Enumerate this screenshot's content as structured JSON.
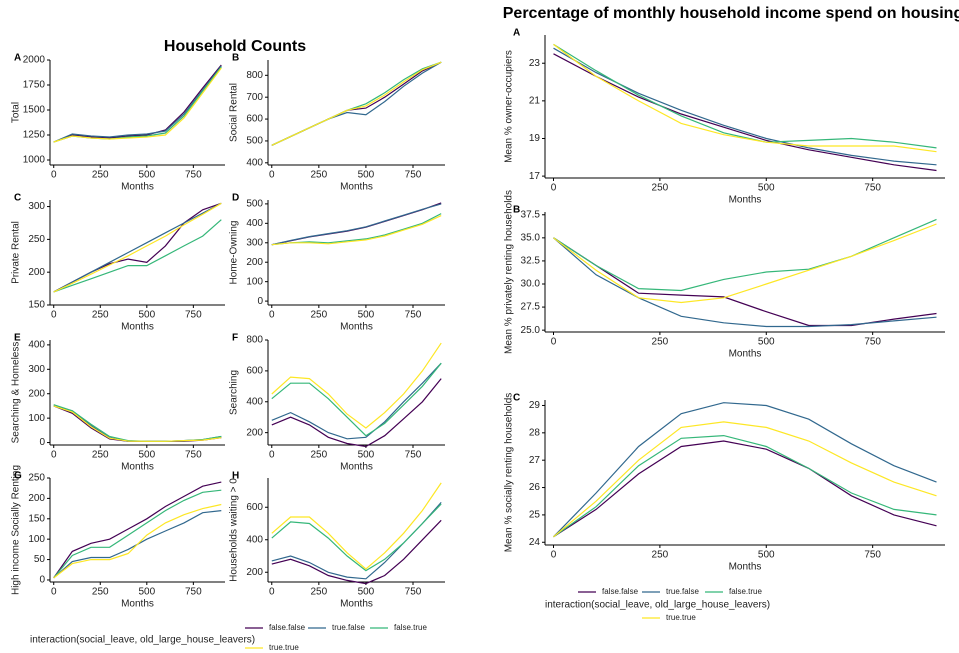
{
  "left_title": "Household Counts",
  "right_title": "Percentage of monthly household income spend on housing",
  "legend_title": "interaction(social_leave, old_large_house_leavers)",
  "chart_data": [
    {
      "type": "line",
      "panel": "A",
      "ylabel": "Total",
      "xlabel": "Months",
      "x": [
        0,
        100,
        200,
        300,
        400,
        500,
        600,
        700,
        800,
        900
      ],
      "xlim": [
        -20,
        920
      ],
      "xticks": [
        0,
        250,
        500,
        750
      ],
      "ylim": [
        950,
        2000
      ],
      "yticks": [
        1000,
        1250,
        1500,
        1750,
        2000
      ],
      "series": [
        {
          "name": "false.false",
          "color": "#440154",
          "values": [
            1180,
            1250,
            1230,
            1220,
            1240,
            1250,
            1300,
            1480,
            1720,
            1950
          ]
        },
        {
          "name": "true.false",
          "color": "#31688e",
          "values": [
            1180,
            1260,
            1240,
            1230,
            1250,
            1260,
            1290,
            1460,
            1700,
            1940
          ]
        },
        {
          "name": "false.true",
          "color": "#35b779",
          "values": [
            1180,
            1240,
            1220,
            1210,
            1230,
            1240,
            1270,
            1440,
            1690,
            1930
          ]
        },
        {
          "name": "true.true",
          "color": "#fde725",
          "values": [
            1180,
            1240,
            1220,
            1210,
            1220,
            1230,
            1250,
            1420,
            1670,
            1920
          ]
        }
      ]
    },
    {
      "type": "line",
      "panel": "B",
      "ylabel": "Social Rental",
      "xlabel": "Months",
      "x": [
        0,
        100,
        200,
        300,
        400,
        500,
        600,
        700,
        800,
        900
      ],
      "xlim": [
        -20,
        920
      ],
      "xticks": [
        0,
        250,
        500,
        750
      ],
      "ylim": [
        390,
        870
      ],
      "yticks": [
        400,
        500,
        600,
        700,
        800
      ],
      "series": [
        {
          "name": "false.false",
          "color": "#440154",
          "values": [
            480,
            520,
            560,
            600,
            640,
            650,
            700,
            760,
            820,
            860
          ]
        },
        {
          "name": "true.false",
          "color": "#31688e",
          "values": [
            480,
            520,
            560,
            600,
            630,
            620,
            680,
            750,
            810,
            860
          ]
        },
        {
          "name": "false.true",
          "color": "#35b779",
          "values": [
            480,
            520,
            560,
            600,
            640,
            670,
            720,
            780,
            830,
            860
          ]
        },
        {
          "name": "true.true",
          "color": "#fde725",
          "values": [
            480,
            520,
            560,
            600,
            640,
            660,
            710,
            770,
            825,
            860
          ]
        }
      ]
    },
    {
      "type": "line",
      "panel": "C",
      "ylabel": "Private Rental",
      "xlabel": "Months",
      "x": [
        0,
        100,
        200,
        300,
        400,
        500,
        600,
        700,
        800,
        900
      ],
      "xlim": [
        -20,
        920
      ],
      "xticks": [
        0,
        250,
        500,
        750
      ],
      "ylim": [
        150,
        310
      ],
      "yticks": [
        150,
        200,
        250,
        300
      ],
      "series": [
        {
          "name": "false.false",
          "color": "#440154",
          "values": [
            170,
            185,
            200,
            213,
            220,
            215,
            240,
            275,
            295,
            305
          ]
        },
        {
          "name": "true.false",
          "color": "#31688e",
          "values": [
            170,
            185,
            200,
            215,
            230,
            245,
            260,
            275,
            290,
            305
          ]
        },
        {
          "name": "false.true",
          "color": "#35b779",
          "values": [
            170,
            180,
            190,
            200,
            210,
            210,
            225,
            240,
            255,
            280
          ]
        },
        {
          "name": "true.true",
          "color": "#fde725",
          "values": [
            170,
            183,
            197,
            211,
            225,
            240,
            255,
            272,
            288,
            305
          ]
        }
      ]
    },
    {
      "type": "line",
      "panel": "D",
      "ylabel": "Home-Owning",
      "xlabel": "Months",
      "x": [
        0,
        100,
        200,
        300,
        400,
        500,
        600,
        700,
        800,
        900
      ],
      "xlim": [
        -20,
        920
      ],
      "xticks": [
        0,
        250,
        500,
        750
      ],
      "ylim": [
        -20,
        520
      ],
      "yticks": [
        0,
        100,
        200,
        300,
        400,
        500
      ],
      "series": [
        {
          "name": "false.false",
          "color": "#440154",
          "values": [
            290,
            310,
            330,
            345,
            360,
            380,
            410,
            440,
            470,
            505
          ]
        },
        {
          "name": "true.false",
          "color": "#31688e",
          "values": [
            290,
            312,
            332,
            347,
            362,
            382,
            412,
            442,
            472,
            500
          ]
        },
        {
          "name": "false.true",
          "color": "#35b779",
          "values": [
            290,
            300,
            305,
            300,
            310,
            320,
            340,
            370,
            400,
            450
          ]
        },
        {
          "name": "true.true",
          "color": "#fde725",
          "values": [
            290,
            300,
            300,
            295,
            305,
            315,
            335,
            365,
            395,
            440
          ]
        }
      ]
    },
    {
      "type": "line",
      "panel": "E",
      "ylabel": "Searching & Homeless",
      "xlabel": "Months",
      "x": [
        0,
        100,
        200,
        300,
        400,
        500,
        600,
        700,
        800,
        900
      ],
      "xlim": [
        -20,
        920
      ],
      "xticks": [
        0,
        250,
        500,
        750
      ],
      "ylim": [
        -10,
        420
      ],
      "yticks": [
        0,
        100,
        200,
        300,
        400
      ],
      "series": [
        {
          "name": "false.false",
          "color": "#440154",
          "values": [
            150,
            120,
            60,
            15,
            5,
            5,
            5,
            5,
            10,
            20
          ]
        },
        {
          "name": "true.false",
          "color": "#31688e",
          "values": [
            150,
            130,
            70,
            20,
            5,
            5,
            5,
            8,
            12,
            25
          ]
        },
        {
          "name": "false.true",
          "color": "#35b779",
          "values": [
            155,
            130,
            75,
            25,
            8,
            5,
            5,
            8,
            12,
            25
          ]
        },
        {
          "name": "true.true",
          "color": "#fde725",
          "values": [
            150,
            125,
            65,
            18,
            6,
            5,
            5,
            8,
            10,
            20
          ]
        }
      ]
    },
    {
      "type": "line",
      "panel": "F",
      "ylabel": "Searching",
      "xlabel": "Months",
      "x": [
        0,
        100,
        200,
        300,
        400,
        500,
        600,
        700,
        800,
        900
      ],
      "xlim": [
        -20,
        920
      ],
      "xticks": [
        0,
        250,
        500,
        750
      ],
      "ylim": [
        120,
        800
      ],
      "yticks": [
        200,
        400,
        600,
        800
      ],
      "series": [
        {
          "name": "false.false",
          "color": "#440154",
          "values": [
            250,
            300,
            250,
            170,
            130,
            110,
            180,
            290,
            400,
            550
          ]
        },
        {
          "name": "true.false",
          "color": "#31688e",
          "values": [
            280,
            330,
            270,
            200,
            160,
            170,
            270,
            400,
            520,
            650
          ]
        },
        {
          "name": "false.true",
          "color": "#35b779",
          "values": [
            420,
            520,
            520,
            420,
            300,
            180,
            260,
            380,
            500,
            650
          ]
        },
        {
          "name": "true.true",
          "color": "#fde725",
          "values": [
            450,
            560,
            550,
            450,
            320,
            230,
            330,
            450,
            600,
            780
          ]
        }
      ]
    },
    {
      "type": "line",
      "panel": "G",
      "ylabel": "High income Socially Renting",
      "xlabel": "Months",
      "x": [
        0,
        100,
        200,
        300,
        400,
        500,
        600,
        700,
        800,
        900
      ],
      "xlim": [
        -20,
        920
      ],
      "xticks": [
        0,
        250,
        500,
        750
      ],
      "ylim": [
        -5,
        250
      ],
      "yticks": [
        0,
        50,
        100,
        150,
        200,
        250
      ],
      "series": [
        {
          "name": "false.false",
          "color": "#440154",
          "values": [
            5,
            70,
            90,
            100,
            125,
            150,
            180,
            205,
            230,
            240
          ]
        },
        {
          "name": "true.false",
          "color": "#31688e",
          "values": [
            5,
            45,
            55,
            55,
            75,
            100,
            120,
            140,
            165,
            170
          ]
        },
        {
          "name": "false.true",
          "color": "#35b779",
          "values": [
            5,
            60,
            80,
            80,
            110,
            140,
            170,
            195,
            215,
            220
          ]
        },
        {
          "name": "true.true",
          "color": "#fde725",
          "values": [
            5,
            40,
            50,
            50,
            65,
            110,
            140,
            160,
            175,
            185
          ]
        }
      ]
    },
    {
      "type": "line",
      "panel": "H",
      "ylabel": "Households waiting > 0",
      "xlabel": "Months",
      "x": [
        0,
        100,
        200,
        300,
        400,
        500,
        600,
        700,
        800,
        900
      ],
      "xlim": [
        -20,
        920
      ],
      "xticks": [
        0,
        250,
        500,
        750
      ],
      "ylim": [
        140,
        780
      ],
      "yticks": [
        200,
        400,
        600
      ],
      "series": [
        {
          "name": "false.false",
          "color": "#440154",
          "values": [
            250,
            280,
            240,
            180,
            150,
            130,
            180,
            280,
            400,
            520
          ]
        },
        {
          "name": "true.false",
          "color": "#31688e",
          "values": [
            270,
            300,
            260,
            200,
            170,
            160,
            260,
            380,
            500,
            630
          ]
        },
        {
          "name": "false.true",
          "color": "#35b779",
          "values": [
            410,
            510,
            500,
            410,
            300,
            210,
            280,
            380,
            500,
            620
          ]
        },
        {
          "name": "true.true",
          "color": "#fde725",
          "values": [
            440,
            540,
            540,
            440,
            320,
            220,
            320,
            440,
            580,
            750
          ]
        }
      ]
    },
    {
      "type": "line",
      "panel": "A",
      "ylabel": "Mean % owner-occupiers",
      "xlabel": "Months",
      "x": [
        0,
        100,
        200,
        300,
        400,
        500,
        600,
        700,
        800,
        900
      ],
      "xlim": [
        -20,
        920
      ],
      "xticks": [
        0,
        250,
        500,
        750
      ],
      "ylim": [
        16.9,
        24.5
      ],
      "yticks": [
        17,
        19,
        21,
        23
      ],
      "series": [
        {
          "name": "false.false",
          "color": "#440154",
          "values": [
            23.5,
            22.3,
            21.2,
            20.3,
            19.6,
            18.9,
            18.4,
            18,
            17.6,
            17.3
          ]
        },
        {
          "name": "true.false",
          "color": "#31688e",
          "values": [
            23.8,
            22.5,
            21.4,
            20.5,
            19.7,
            19,
            18.5,
            18.1,
            17.8,
            17.6
          ]
        },
        {
          "name": "false.true",
          "color": "#35b779",
          "values": [
            24,
            22.6,
            21.3,
            20.2,
            19.3,
            18.8,
            18.9,
            19,
            18.8,
            18.5
          ]
        },
        {
          "name": "true.true",
          "color": "#fde725",
          "values": [
            24,
            22.3,
            21,
            19.8,
            19.2,
            18.8,
            18.6,
            18.6,
            18.6,
            18.3
          ]
        }
      ]
    },
    {
      "type": "line",
      "panel": "B",
      "ylabel": "Mean % privately renting households",
      "xlabel": "Months",
      "x": [
        0,
        100,
        200,
        300,
        400,
        500,
        600,
        700,
        800,
        900
      ],
      "xlim": [
        -20,
        920
      ],
      "xticks": [
        0,
        250,
        500,
        750
      ],
      "ylim": [
        24.8,
        37.8
      ],
      "yticks": [
        {
          "value": 25,
          "label": "25.0"
        },
        27.5,
        {
          "value": 30,
          "label": "30.0"
        },
        32.5,
        {
          "value": 35,
          "label": "35.0"
        },
        37.5
      ],
      "series": [
        {
          "name": "false.false",
          "color": "#440154",
          "values": [
            35,
            32,
            29,
            28.8,
            28.6,
            27,
            25.5,
            25.5,
            26.2,
            26.8
          ]
        },
        {
          "name": "true.false",
          "color": "#31688e",
          "values": [
            35,
            31,
            28.5,
            26.5,
            25.8,
            25.4,
            25.4,
            25.6,
            26,
            26.4
          ]
        },
        {
          "name": "false.true",
          "color": "#35b779",
          "values": [
            35,
            32,
            29.5,
            29.3,
            30.5,
            31.3,
            31.6,
            33,
            35,
            37
          ]
        },
        {
          "name": "true.true",
          "color": "#fde725",
          "values": [
            35,
            31.5,
            28.5,
            28,
            28.5,
            30,
            31.5,
            33,
            34.7,
            36.5
          ]
        }
      ]
    },
    {
      "type": "line",
      "panel": "C",
      "ylabel": "Mean % socially renting households",
      "xlabel": "Months",
      "x": [
        0,
        100,
        200,
        300,
        400,
        500,
        600,
        700,
        800,
        900
      ],
      "xlim": [
        -20,
        920
      ],
      "xticks": [
        0,
        250,
        500,
        750
      ],
      "ylim": [
        23.9,
        29.2
      ],
      "yticks": [
        24,
        25,
        26,
        27,
        28,
        29
      ],
      "series": [
        {
          "name": "false.false",
          "color": "#440154",
          "values": [
            24.2,
            25.2,
            26.5,
            27.5,
            27.7,
            27.4,
            26.7,
            25.7,
            25,
            24.6
          ]
        },
        {
          "name": "true.false",
          "color": "#31688e",
          "values": [
            24.2,
            25.8,
            27.5,
            28.7,
            29.1,
            29,
            28.5,
            27.6,
            26.8,
            26.2
          ]
        },
        {
          "name": "false.true",
          "color": "#35b779",
          "values": [
            24.2,
            25.3,
            26.8,
            27.8,
            27.9,
            27.5,
            26.7,
            25.8,
            25.2,
            25
          ]
        },
        {
          "name": "true.true",
          "color": "#fde725",
          "values": [
            24.2,
            25.5,
            27,
            28.2,
            28.4,
            28.2,
            27.7,
            26.9,
            26.2,
            25.7
          ]
        }
      ]
    }
  ]
}
